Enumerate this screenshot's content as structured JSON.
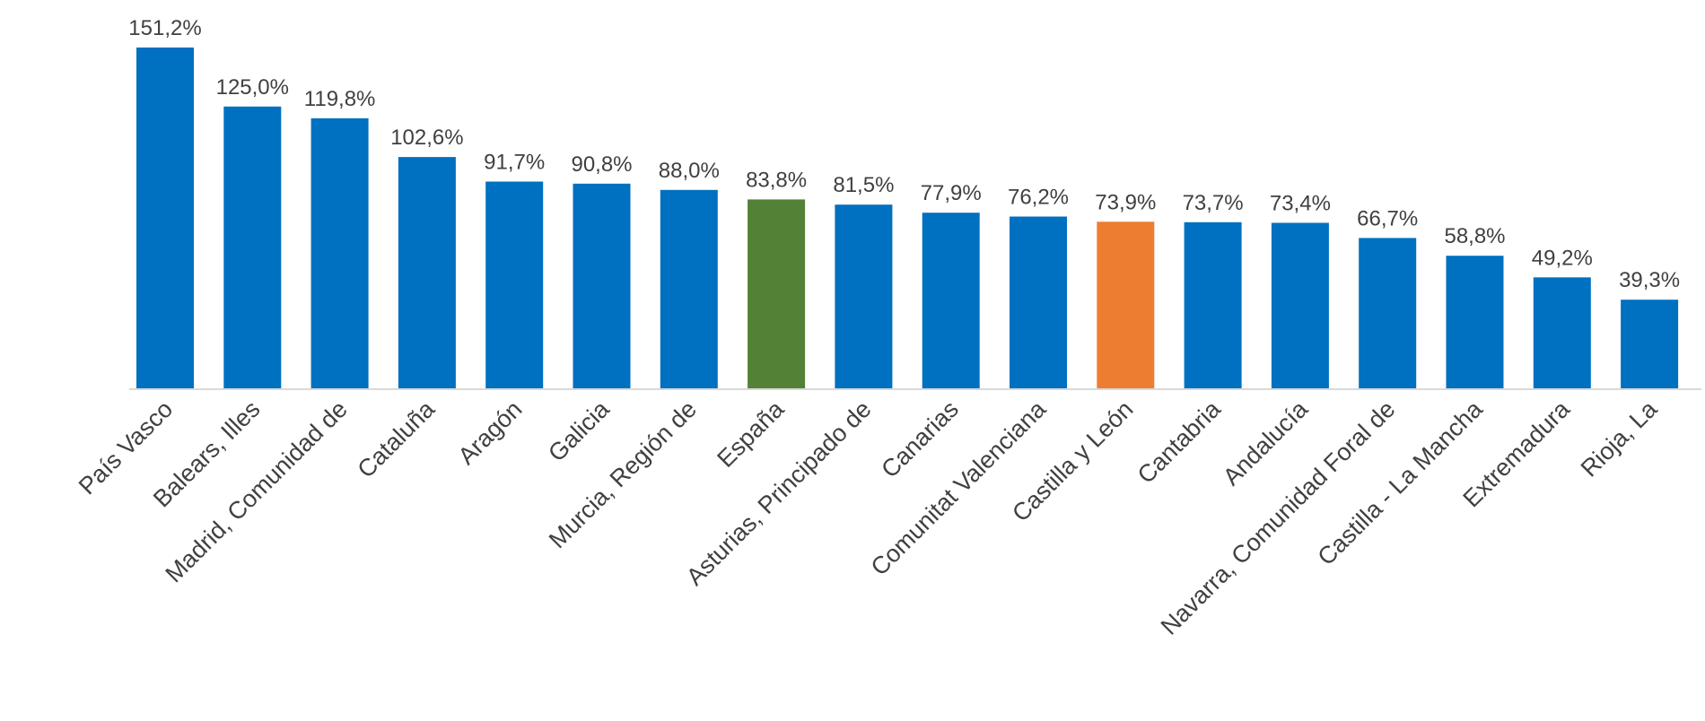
{
  "chart_data": {
    "type": "bar",
    "title": "",
    "xlabel": "",
    "ylabel": "",
    "ylim": [
      0,
      151.2
    ],
    "grid": false,
    "legend": "none",
    "categories": [
      "País Vasco",
      "Balears, Illes",
      "Madrid, Comunidad de",
      "Cataluña",
      "Aragón",
      "Galicia",
      "Murcia, Región de",
      "España",
      "Asturias, Principado de",
      "Canarias",
      "Comunitat Valenciana",
      "Castilla y León",
      "Cantabria",
      "Andalucía",
      "Navarra, Comunidad Foral de",
      "Castilla - La Mancha",
      "Extremadura",
      "Rioja, La"
    ],
    "values": [
      151.2,
      125.0,
      119.8,
      102.6,
      91.7,
      90.8,
      88.0,
      83.8,
      81.5,
      77.9,
      76.2,
      73.9,
      73.7,
      73.4,
      66.7,
      58.8,
      49.2,
      39.3
    ],
    "data_labels": [
      "151,2%",
      "125,0%",
      "119,8%",
      "102,6%",
      "91,7%",
      "90,8%",
      "88,0%",
      "83,8%",
      "81,5%",
      "77,9%",
      "76,2%",
      "73,9%",
      "73,7%",
      "73,4%",
      "66,7%",
      "58,8%",
      "49,2%",
      "39,3%"
    ],
    "colors": {
      "default": "#0070C0",
      "highlight_national": "#538135",
      "highlight_region": "#ED7D31",
      "axis": "#D9D9D9",
      "text": "#404040"
    },
    "highlights": {
      "España": "highlight_national",
      "Castilla y León": "highlight_region"
    }
  }
}
